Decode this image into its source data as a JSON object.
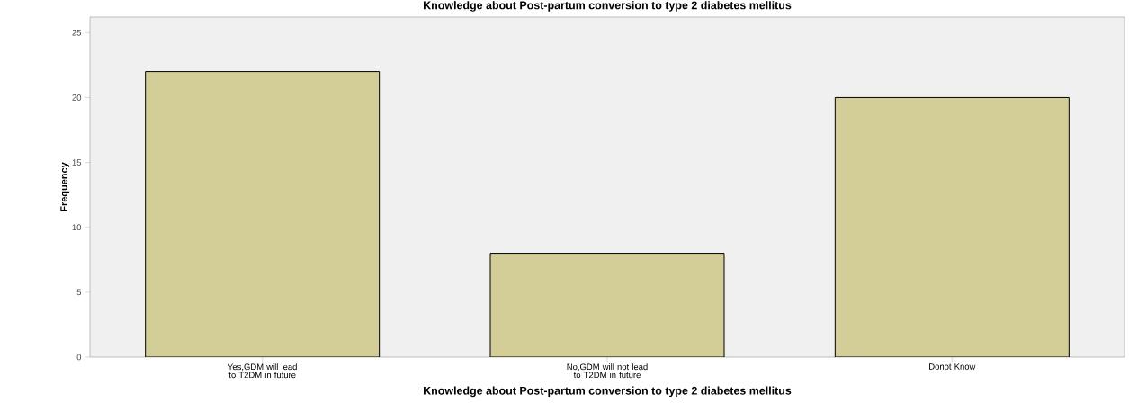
{
  "chart_data": {
    "type": "bar",
    "title": "Knowledge about Post-partum conversion to type 2 diabetes mellitus",
    "xlabel": "Knowledge about Post-partum conversion to type 2 diabetes mellitus",
    "ylabel": "Frequency",
    "categories": [
      "Yes,GDM will lead to T2DM in future",
      "No,GDM will not lead to T2DM in future",
      "Donot Know"
    ],
    "values": [
      22,
      8,
      20
    ],
    "color": "#d3ce97",
    "ylim": [
      0,
      26.2
    ],
    "yticks": [
      0,
      5,
      10,
      15,
      20,
      25
    ],
    "grid": false
  }
}
